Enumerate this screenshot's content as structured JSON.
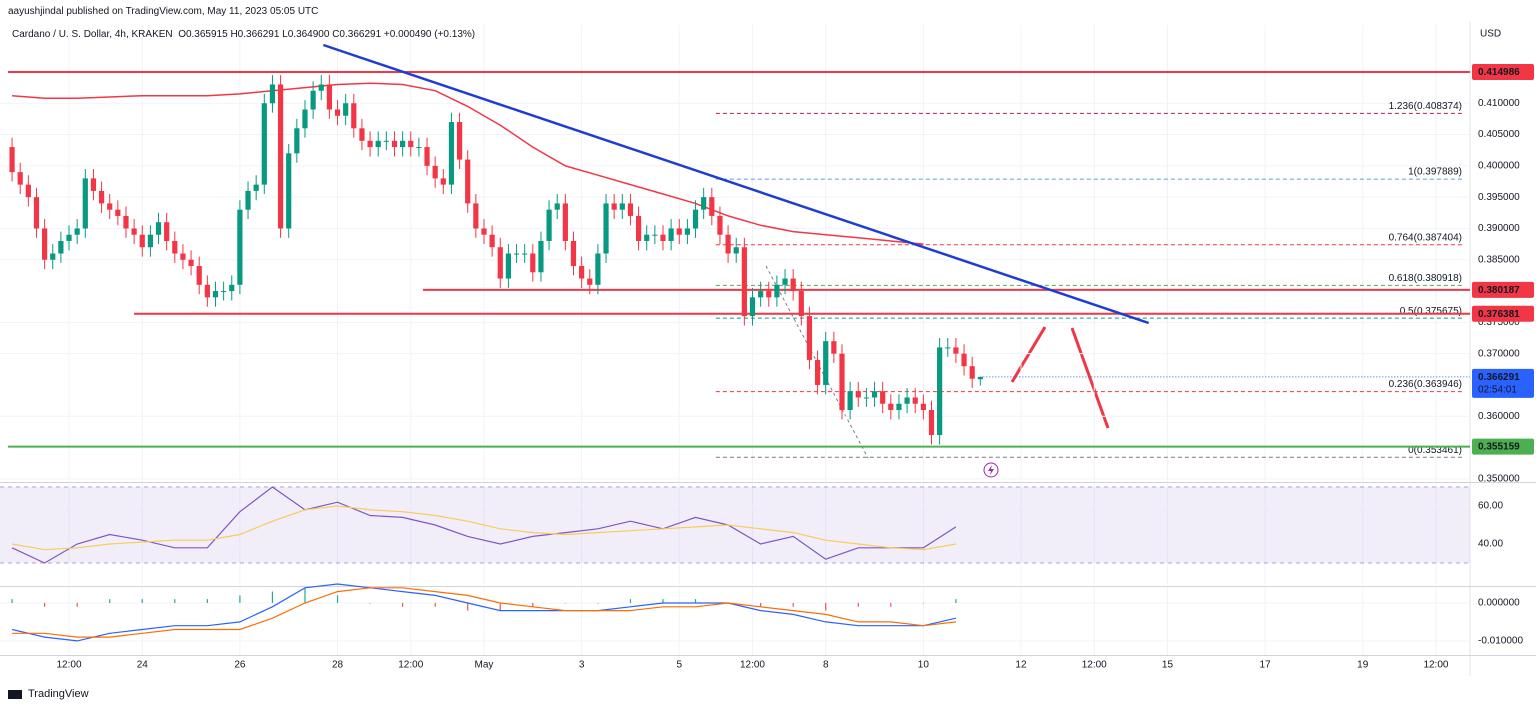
{
  "header": {
    "publisher": "aayushjindal published on TradingView.com, May 11, 2023 05:05 UTC",
    "symbol": "Cardano / U. S. Dollar, 4h, KRAKEN",
    "ohlc": "O0.365915 H0.366291 L0.364900 C0.366291 +0.000490 (+0.13%)"
  },
  "chart_data": [
    {
      "type": "candlestick",
      "currency": "USD",
      "xlim": [
        -0.5,
        178.2
      ],
      "ylim": [
        0.3495,
        0.4225
      ],
      "xticks": [
        {
          "value": 7,
          "label": "12:00"
        },
        {
          "value": 16,
          "label": "24"
        },
        {
          "value": 28,
          "label": "26"
        },
        {
          "value": 40,
          "label": "28"
        },
        {
          "value": 49,
          "label": "12:00"
        },
        {
          "value": 58,
          "label": "May"
        },
        {
          "value": 70,
          "label": "3"
        },
        {
          "value": 82,
          "label": "5"
        },
        {
          "value": 91,
          "label": "12:00"
        },
        {
          "value": 100,
          "label": "8"
        },
        {
          "value": 112,
          "label": "10"
        },
        {
          "value": 124,
          "label": "12"
        },
        {
          "value": 133,
          "label": "12:00"
        },
        {
          "value": 142,
          "label": "15"
        },
        {
          "value": 154,
          "label": "17"
        },
        {
          "value": 166,
          "label": "19"
        },
        {
          "value": 175,
          "label": "12:00"
        }
      ],
      "yticks": [
        {
          "value": 0.35,
          "label": "0.350000"
        },
        {
          "value": 0.36,
          "label": "0.360000"
        },
        {
          "value": 0.37,
          "label": "0.370000"
        },
        {
          "value": 0.375,
          "label": "0.375000"
        },
        {
          "value": 0.385,
          "label": "0.385000"
        },
        {
          "value": 0.39,
          "label": "0.390000"
        },
        {
          "value": 0.395,
          "label": "0.395000"
        },
        {
          "value": 0.4,
          "label": "0.400000"
        },
        {
          "value": 0.405,
          "label": "0.405000"
        },
        {
          "value": 0.41,
          "label": "0.410000"
        }
      ],
      "grid": true,
      "up_color": "#089981",
      "down_color": "#f23645",
      "open": [
        0.403,
        0.399,
        0.397,
        0.395,
        0.39,
        0.385,
        0.386,
        0.388,
        0.389,
        0.39,
        0.398,
        0.396,
        0.394,
        0.393,
        0.392,
        0.39,
        0.389,
        0.387,
        0.389,
        0.391,
        0.388,
        0.386,
        0.385,
        0.384,
        0.381,
        0.379,
        0.38,
        0.38,
        0.381,
        0.393,
        0.396,
        0.397,
        0.41,
        0.413,
        0.39,
        0.402,
        0.406,
        0.409,
        0.412,
        0.413,
        0.409,
        0.408,
        0.41,
        0.406,
        0.404,
        0.403,
        0.404,
        0.404,
        0.403,
        0.404,
        0.403,
        0.403,
        0.4,
        0.398,
        0.397,
        0.407,
        0.401,
        0.394,
        0.39,
        0.389,
        0.387,
        0.382,
        0.386,
        0.386,
        0.386,
        0.383,
        0.388,
        0.393,
        0.394,
        0.388,
        0.384,
        0.382,
        0.381,
        0.386,
        0.394,
        0.393,
        0.394,
        0.392,
        0.388,
        0.389,
        0.389,
        0.388,
        0.39,
        0.389,
        0.39,
        0.393,
        0.395,
        0.392,
        0.389,
        0.386,
        0.387,
        0.376,
        0.379,
        0.38,
        0.379,
        0.381,
        0.382,
        0.38,
        0.376,
        0.369,
        0.365,
        0.372,
        0.37,
        0.361,
        0.364,
        0.363,
        0.363,
        0.364,
        0.362,
        0.361,
        0.362,
        0.363,
        0.362,
        0.361,
        0.357,
        0.371,
        0.371,
        0.37,
        0.368,
        0.365915
      ],
      "high": [
        0.4045,
        0.4005,
        0.3985,
        0.3965,
        0.3915,
        0.3875,
        0.3895,
        0.3905,
        0.3915,
        0.3995,
        0.3995,
        0.3975,
        0.3955,
        0.3945,
        0.3935,
        0.3915,
        0.3905,
        0.3905,
        0.3925,
        0.3925,
        0.3895,
        0.3875,
        0.3865,
        0.3855,
        0.3825,
        0.3815,
        0.3815,
        0.3825,
        0.3945,
        0.3975,
        0.3985,
        0.4115,
        0.4145,
        0.4145,
        0.4035,
        0.4075,
        0.4105,
        0.4135,
        0.4145,
        0.4145,
        0.4105,
        0.4115,
        0.4115,
        0.4075,
        0.4055,
        0.4055,
        0.4055,
        0.4055,
        0.4055,
        0.4055,
        0.4045,
        0.4045,
        0.4015,
        0.3995,
        0.4085,
        0.4085,
        0.4025,
        0.3955,
        0.3915,
        0.3905,
        0.3885,
        0.3875,
        0.3875,
        0.3875,
        0.3875,
        0.3895,
        0.3945,
        0.3955,
        0.3955,
        0.3895,
        0.3855,
        0.3835,
        0.3875,
        0.3955,
        0.3955,
        0.3955,
        0.3955,
        0.3935,
        0.3905,
        0.3905,
        0.3905,
        0.3915,
        0.3915,
        0.3915,
        0.3945,
        0.3965,
        0.3965,
        0.3935,
        0.3905,
        0.3885,
        0.3885,
        0.3805,
        0.3815,
        0.3815,
        0.3825,
        0.3835,
        0.3835,
        0.3815,
        0.3775,
        0.3705,
        0.3735,
        0.3735,
        0.3715,
        0.3655,
        0.3655,
        0.3645,
        0.3655,
        0.3655,
        0.3635,
        0.3635,
        0.3645,
        0.3645,
        0.3635,
        0.3625,
        0.3725,
        0.3725,
        0.3725,
        0.3715,
        0.3695,
        0.366291
      ],
      "low": [
        0.3975,
        0.3955,
        0.3935,
        0.3885,
        0.3835,
        0.3835,
        0.3845,
        0.3865,
        0.3875,
        0.3885,
        0.3945,
        0.3925,
        0.3915,
        0.3905,
        0.3885,
        0.3875,
        0.3855,
        0.3855,
        0.3875,
        0.3865,
        0.3845,
        0.3835,
        0.3825,
        0.3795,
        0.3775,
        0.3775,
        0.3785,
        0.3785,
        0.3795,
        0.3915,
        0.3945,
        0.3955,
        0.4085,
        0.3885,
        0.3885,
        0.4005,
        0.4045,
        0.4075,
        0.4105,
        0.4075,
        0.4065,
        0.4065,
        0.4045,
        0.4025,
        0.4015,
        0.4015,
        0.4025,
        0.4015,
        0.4015,
        0.4015,
        0.4015,
        0.3985,
        0.3965,
        0.3955,
        0.3955,
        0.3995,
        0.3925,
        0.3885,
        0.3875,
        0.3855,
        0.3805,
        0.3805,
        0.3845,
        0.3845,
        0.3815,
        0.3815,
        0.3865,
        0.3915,
        0.3865,
        0.3825,
        0.3805,
        0.3795,
        0.3795,
        0.3845,
        0.3915,
        0.3915,
        0.3905,
        0.3865,
        0.3865,
        0.3875,
        0.3865,
        0.3865,
        0.3875,
        0.3875,
        0.3885,
        0.3915,
        0.3905,
        0.3875,
        0.3845,
        0.3845,
        0.3745,
        0.3745,
        0.3775,
        0.3775,
        0.3775,
        0.3795,
        0.3785,
        0.3745,
        0.3675,
        0.3635,
        0.3635,
        0.3685,
        0.3595,
        0.3595,
        0.3615,
        0.3615,
        0.3615,
        0.3605,
        0.3595,
        0.3595,
        0.3605,
        0.3605,
        0.3595,
        0.3555,
        0.3555,
        0.3695,
        0.3685,
        0.3665,
        0.3645,
        0.3649
      ],
      "close": [
        0.399,
        0.397,
        0.395,
        0.39,
        0.385,
        0.386,
        0.388,
        0.389,
        0.39,
        0.398,
        0.396,
        0.394,
        0.393,
        0.392,
        0.39,
        0.389,
        0.387,
        0.389,
        0.391,
        0.388,
        0.386,
        0.385,
        0.384,
        0.381,
        0.379,
        0.38,
        0.38,
        0.381,
        0.393,
        0.396,
        0.397,
        0.41,
        0.413,
        0.39,
        0.402,
        0.406,
        0.409,
        0.412,
        0.413,
        0.409,
        0.408,
        0.41,
        0.406,
        0.404,
        0.403,
        0.404,
        0.404,
        0.403,
        0.404,
        0.403,
        0.403,
        0.4,
        0.398,
        0.397,
        0.407,
        0.401,
        0.394,
        0.39,
        0.389,
        0.387,
        0.382,
        0.386,
        0.386,
        0.386,
        0.383,
        0.388,
        0.393,
        0.394,
        0.388,
        0.384,
        0.382,
        0.381,
        0.386,
        0.394,
        0.393,
        0.394,
        0.392,
        0.388,
        0.389,
        0.389,
        0.388,
        0.39,
        0.389,
        0.39,
        0.393,
        0.395,
        0.392,
        0.389,
        0.386,
        0.387,
        0.376,
        0.379,
        0.38,
        0.379,
        0.381,
        0.382,
        0.38,
        0.376,
        0.369,
        0.365,
        0.372,
        0.37,
        0.361,
        0.364,
        0.363,
        0.363,
        0.364,
        0.362,
        0.361,
        0.362,
        0.363,
        0.362,
        0.361,
        0.357,
        0.371,
        0.371,
        0.37,
        0.368,
        0.366,
        0.366291
      ],
      "moving_average": {
        "color": "#f23645",
        "x": [
          0,
          4,
          8,
          12,
          16,
          20,
          24,
          28,
          32,
          36,
          40,
          44,
          48,
          52,
          56,
          60,
          64,
          68,
          72,
          76,
          80,
          84,
          88,
          92,
          96,
          100,
          104,
          108,
          112
        ],
        "values": [
          0.4112,
          0.4108,
          0.4108,
          0.411,
          0.4112,
          0.4112,
          0.4112,
          0.4115,
          0.412,
          0.4125,
          0.413,
          0.4132,
          0.413,
          0.412,
          0.4095,
          0.4065,
          0.403,
          0.4,
          0.3985,
          0.397,
          0.3955,
          0.394,
          0.392,
          0.3905,
          0.3895,
          0.389,
          0.3885,
          0.388,
          0.3875
        ]
      },
      "trendline": {
        "color": "#1e3ed1",
        "x": [
          38.25,
          139.7
        ],
        "values": [
          0.4193,
          0.3749
        ]
      },
      "levels": [
        {
          "value": 0.414986,
          "label": "0.414986",
          "color": "#f23645",
          "start": -0.5
        },
        {
          "value": 0.380187,
          "label": "0.380187",
          "color": "#f23645",
          "start": 50.5
        },
        {
          "value": 0.376381,
          "label": "0.376381",
          "color": "#f23645",
          "start": 15
        },
        {
          "value": 0.355159,
          "label": "0.355159",
          "color": "#4caf50",
          "start": -0.5
        }
      ],
      "last_price": {
        "value": 0.366291,
        "label": "0.366291",
        "countdown": "02:54:01",
        "color": "#2962ff"
      },
      "fibonacci": {
        "start": 86.5,
        "levels": [
          {
            "value": 0.408374,
            "label": "1.236(0.408374)",
            "color": "#c2185b"
          },
          {
            "value": 0.397889,
            "label": "1(0.397889)",
            "color": "#5b9cf6"
          },
          {
            "value": 0.387404,
            "label": "0.764(0.387404)",
            "color": "#f23645"
          },
          {
            "value": 0.380918,
            "label": "0.618(0.380918)",
            "color": "#4caf50"
          },
          {
            "value": 0.375675,
            "label": "0.5(0.375675)",
            "color": "#089981"
          },
          {
            "value": 0.363946,
            "label": "0.236(0.363946)",
            "color": "#f23645"
          },
          {
            "value": 0.353461,
            "label": "0(0.353461)",
            "color": "#787b86"
          }
        ]
      }
    },
    {
      "type": "line",
      "xlim": [
        -0.5,
        178.2
      ],
      "ylim": [
        18.4,
        71.6
      ],
      "band": [
        30,
        70
      ],
      "yticks": [
        {
          "value": 60,
          "label": "60.00"
        },
        {
          "value": 40,
          "label": "40.00"
        }
      ],
      "x": [
        0,
        4,
        8,
        12,
        16,
        20,
        24,
        28,
        32,
        36,
        40,
        44,
        48,
        52,
        56,
        60,
        64,
        68,
        72,
        76,
        80,
        84,
        88,
        92,
        96,
        100,
        104,
        108,
        112,
        116
      ],
      "series": [
        {
          "color": "#7e57c2",
          "values": [
            38,
            30,
            40,
            45,
            42,
            38,
            38,
            57,
            70,
            58,
            62,
            55,
            54,
            50,
            44,
            40,
            44,
            46,
            48,
            52,
            48,
            54,
            50,
            40,
            44,
            32,
            38,
            38,
            38,
            49
          ]
        },
        {
          "color": "#f9cb5b",
          "values": [
            40,
            37,
            38,
            40,
            41,
            42,
            42,
            45,
            52,
            58,
            60,
            58,
            57,
            55,
            52,
            48,
            46,
            45,
            46,
            47,
            48,
            49,
            50,
            48,
            46,
            42,
            40,
            38,
            37,
            40
          ]
        }
      ]
    },
    {
      "type": "line",
      "xlim": [
        -0.5,
        178.2
      ],
      "ylim": [
        -0.0137,
        0.0042
      ],
      "yticks": [
        {
          "value": 0,
          "label": "0.000000"
        },
        {
          "value": -0.01,
          "label": "-0.010000"
        }
      ],
      "x": [
        0,
        4,
        8,
        12,
        16,
        20,
        24,
        28,
        32,
        36,
        40,
        44,
        48,
        52,
        56,
        60,
        64,
        68,
        72,
        76,
        80,
        84,
        88,
        92,
        96,
        100,
        104,
        108,
        112,
        116
      ],
      "series": [
        {
          "style": "histogram",
          "color": "#26a69a",
          "negative_color": "#ef5350",
          "values": [
            0.001,
            -0.001,
            -0.001,
            0.001,
            0.001,
            0.001,
            0.001,
            0.002,
            0.003,
            0.004,
            0.002,
            0,
            -0.001,
            -0.001,
            -0.002,
            -0.002,
            -0.001,
            0,
            0,
            0.001,
            0.001,
            0.001,
            0,
            -0.001,
            -0.001,
            -0.002,
            -0.001,
            -0.001,
            0,
            0.001
          ]
        },
        {
          "color": "#2962ff",
          "values": [
            -0.007,
            -0.009,
            -0.01,
            -0.008,
            -0.007,
            -0.006,
            -0.006,
            -0.005,
            -0.001,
            0.004,
            0.005,
            0.004,
            0.003,
            0.002,
            0,
            -0.002,
            -0.002,
            -0.002,
            -0.002,
            -0.001,
            0,
            0,
            0,
            -0.002,
            -0.003,
            -0.005,
            -0.006,
            -0.006,
            -0.006,
            -0.004
          ]
        },
        {
          "color": "#ff6d00",
          "values": [
            -0.008,
            -0.008,
            -0.009,
            -0.009,
            -0.008,
            -0.007,
            -0.007,
            -0.007,
            -0.004,
            0,
            0.003,
            0.004,
            0.004,
            0.003,
            0.002,
            0,
            -0.001,
            -0.002,
            -0.002,
            -0.002,
            -0.001,
            -0.001,
            0,
            -0.001,
            -0.002,
            -0.003,
            -0.005,
            -0.005,
            -0.006,
            -0.005
          ]
        }
      ]
    }
  ],
  "footer": {
    "brand": "TradingView"
  }
}
